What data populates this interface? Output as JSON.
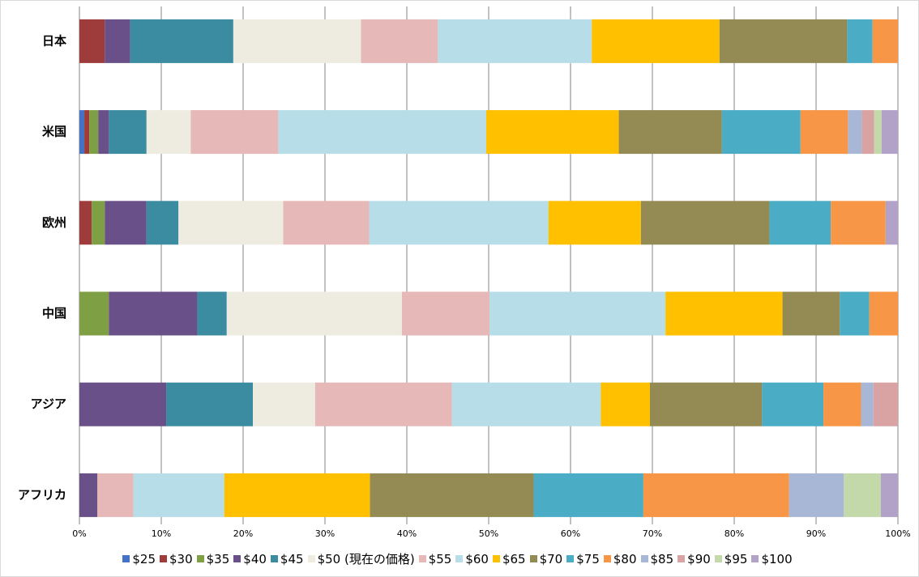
{
  "chart_data": {
    "type": "stacked_barh",
    "categories": [
      "日本",
      "米国",
      "欧州",
      "中国",
      "アジア",
      "アフリカ"
    ],
    "series": [
      {
        "name": "$25",
        "color": "#4472c4",
        "values": [
          0,
          0.6,
          0,
          0,
          0,
          0
        ]
      },
      {
        "name": "$30",
        "color": "#9e3b3b",
        "values": [
          3.1,
          0.6,
          1.5,
          0,
          0,
          0
        ]
      },
      {
        "name": "$35",
        "color": "#7f9f45",
        "values": [
          0,
          1.1,
          1.6,
          3.6,
          0,
          0
        ]
      },
      {
        "name": "$40",
        "color": "#6a5089",
        "values": [
          3.1,
          1.3,
          5.1,
          10.8,
          10.6,
          2.2
        ]
      },
      {
        "name": "$45",
        "color": "#3b8ca0",
        "values": [
          12.6,
          4.6,
          3.9,
          3.6,
          10.6,
          0
        ]
      },
      {
        "name": "$50 (現在の価格)",
        "color": "#eeece1",
        "values": [
          15.6,
          5.4,
          12.8,
          21.4,
          7.6,
          0
        ]
      },
      {
        "name": "$55",
        "color": "#e6b8b7",
        "values": [
          9.4,
          10.7,
          10.5,
          10.7,
          16.7,
          4.4
        ]
      },
      {
        "name": "$60",
        "color": "#b7dee8",
        "values": [
          18.8,
          25.4,
          21.9,
          21.5,
          18.2,
          11.1
        ]
      },
      {
        "name": "$65",
        "color": "#ffc000",
        "values": [
          15.6,
          16.2,
          11.3,
          14.3,
          6.0,
          17.8
        ]
      },
      {
        "name": "$70",
        "color": "#948a54",
        "values": [
          15.6,
          12.6,
          15.7,
          7.0,
          13.7,
          20.0
        ]
      },
      {
        "name": "$75",
        "color": "#4bacc6",
        "values": [
          3.1,
          9.6,
          7.5,
          3.6,
          7.5,
          13.4
        ]
      },
      {
        "name": "$80",
        "color": "#f79646",
        "values": [
          3.1,
          5.8,
          6.7,
          3.5,
          4.6,
          17.8
        ]
      },
      {
        "name": "$85",
        "color": "#a9b7d6",
        "values": [
          0,
          1.7,
          0,
          0,
          1.5,
          6.7
        ]
      },
      {
        "name": "$90",
        "color": "#d9a3a3",
        "values": [
          0,
          1.5,
          0,
          0,
          3.0,
          0
        ]
      },
      {
        "name": "$95",
        "color": "#c4d9a9",
        "values": [
          0,
          0.9,
          0,
          0,
          0,
          4.5
        ]
      },
      {
        "name": "$100",
        "color": "#b3a2c7",
        "values": [
          0,
          2.0,
          1.5,
          0,
          0,
          2.1
        ]
      }
    ],
    "xlim": [
      0,
      100
    ],
    "xticks": [
      {
        "value": 0,
        "label": "0%"
      },
      {
        "value": 10,
        "label": "10%"
      },
      {
        "value": 20,
        "label": "20%"
      },
      {
        "value": 30,
        "label": "30%"
      },
      {
        "value": 40,
        "label": "40%"
      },
      {
        "value": 50,
        "label": "50%"
      },
      {
        "value": 60,
        "label": "60%"
      },
      {
        "value": 70,
        "label": "70%"
      },
      {
        "value": 80,
        "label": "80%"
      },
      {
        "value": 90,
        "label": "90%"
      },
      {
        "value": 100,
        "label": "100%"
      }
    ],
    "grid": true,
    "legend": "bottom"
  }
}
